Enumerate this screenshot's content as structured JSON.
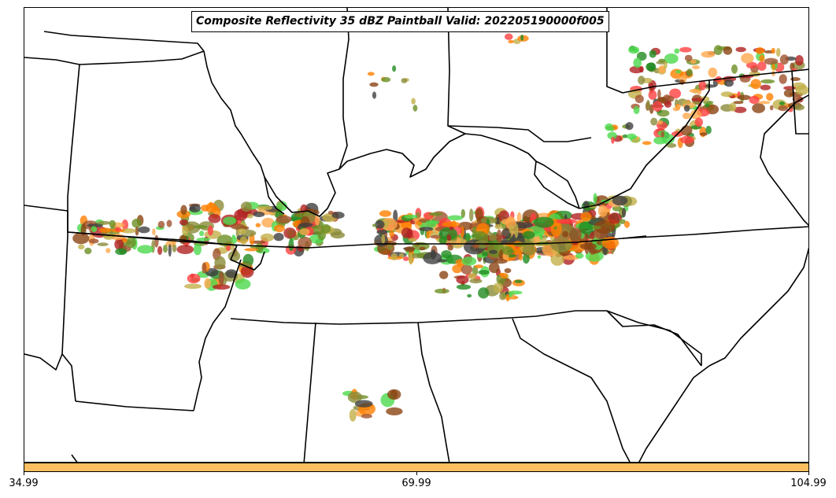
{
  "title": "Composite Reflectivity 35 dBZ Paintball Valid: 202205190000f005",
  "colorbar": {
    "color": "#FDBF5F",
    "ticks": [
      "34.99",
      "69.99",
      "104.99"
    ],
    "range": [
      34.99,
      104.99
    ]
  },
  "palette": {
    "border": "#000000",
    "member_colors": [
      "#FF4040",
      "#FF7F00",
      "#B22222",
      "#8B4513",
      "#4CD94C",
      "#228B22",
      "#8B8B3A",
      "#C2B04A",
      "#FFA94D",
      "#404040",
      "#A0522D",
      "#6B8E23"
    ]
  }
}
